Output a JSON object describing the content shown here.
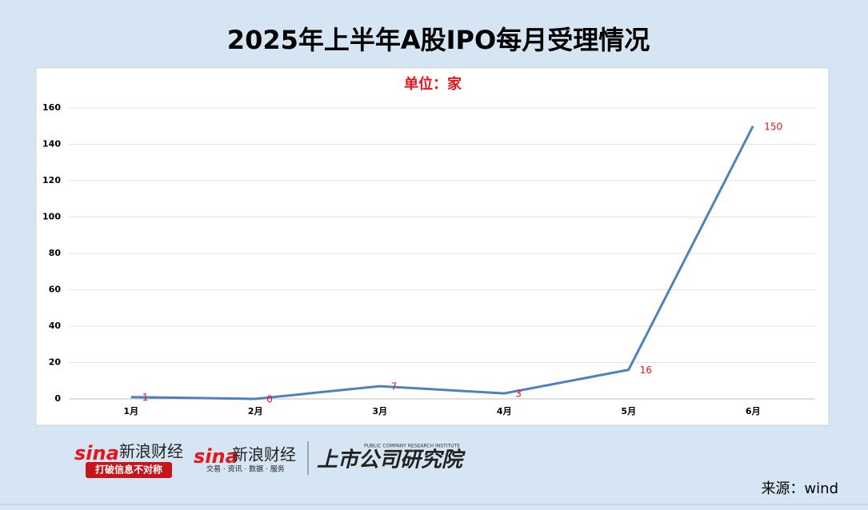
{
  "chart_data": {
    "type": "line",
    "title": "2025年上半年A股IPO每月受理情况",
    "subtitle": "单位：家",
    "categories": [
      "1月",
      "2月",
      "3月",
      "4月",
      "5月",
      "6月"
    ],
    "values": [
      1,
      0,
      7,
      3,
      16,
      150
    ],
    "color": "#4f81bd",
    "label_color": "#e8141b",
    "ylim": [
      0,
      160
    ],
    "yticks": [
      0,
      20,
      40,
      60,
      80,
      100,
      120,
      140,
      160
    ],
    "grid": true
  },
  "footer": {
    "logo1_brand": "sina",
    "logo1_name": "新浪财经",
    "logo1_slogan": "打破信息不对称",
    "logo2_brand": "sina",
    "logo2_name": "新浪财经",
    "logo2_slogan": "交易 · 资讯 · 数据 · 服务",
    "logo3_en": "PUBLIC COMPANY RESEARCH INSTITUTE",
    "logo3_name": "上市公司研究院",
    "source": "来源：wind"
  }
}
